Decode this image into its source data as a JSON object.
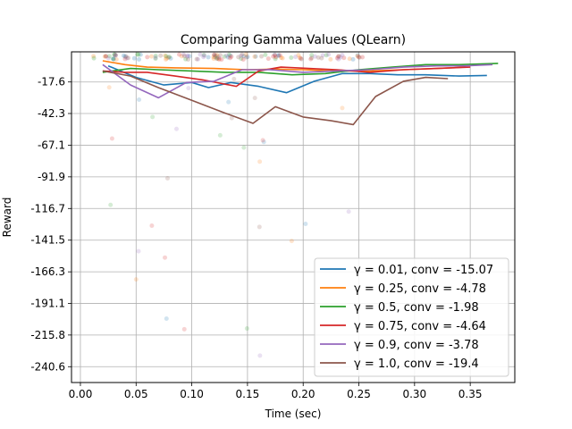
{
  "chart_data": {
    "type": "line",
    "title": "Comparing Gamma Values (QLearn)",
    "xlabel": "Time (sec)",
    "ylabel": "Reward",
    "xlim": [
      -0.008,
      0.39
    ],
    "ylim": [
      -253,
      6
    ],
    "xticks": [
      0.0,
      0.05,
      0.1,
      0.15,
      0.2,
      0.25,
      0.3,
      0.35
    ],
    "xtick_labels": [
      "0.00",
      "0.05",
      "0.10",
      "0.15",
      "0.20",
      "0.25",
      "0.30",
      "0.35"
    ],
    "yticks": [
      -17.6,
      -42.3,
      -67.1,
      -91.9,
      -116.7,
      -141.5,
      -166.3,
      -191.1,
      -215.8,
      -240.6
    ],
    "ytick_labels": [
      "-17.6",
      "-42.3",
      "-67.1",
      "-91.9",
      "-116.7",
      "-141.5",
      "-166.3",
      "-191.1",
      "-215.8",
      "-240.6"
    ],
    "grid": true,
    "legend_position": "bottom-right",
    "series": [
      {
        "name": "γ = 0.01, conv = -15.07",
        "color": "#1f77b4",
        "x": [
          0.025,
          0.05,
          0.075,
          0.1,
          0.115,
          0.135,
          0.16,
          0.185,
          0.21,
          0.235,
          0.26,
          0.285,
          0.31,
          0.34,
          0.365
        ],
        "y": [
          -5,
          -14,
          -20,
          -18,
          -22,
          -18,
          -21,
          -26,
          -17,
          -11,
          -11,
          -12,
          -12,
          -13,
          -12.5
        ]
      },
      {
        "name": "γ = 0.25, conv = -4.78",
        "color": "#ff7f0e",
        "x": [
          0.02,
          0.04,
          0.06,
          0.085,
          0.12,
          0.15,
          0.175,
          0.2,
          0.23,
          0.26,
          0.29,
          0.32,
          0.345
        ],
        "y": [
          -1,
          -4,
          -6,
          -6.5,
          -7,
          -8,
          -7.5,
          -8,
          -9,
          -9,
          -8,
          -7,
          -6
        ]
      },
      {
        "name": "γ = 0.5, conv = -1.98",
        "color": "#2ca02c",
        "x": [
          0.02,
          0.045,
          0.07,
          0.1,
          0.13,
          0.16,
          0.19,
          0.22,
          0.25,
          0.28,
          0.31,
          0.34,
          0.375
        ],
        "y": [
          -10,
          -7,
          -8,
          -9,
          -10,
          -10,
          -12,
          -11,
          -8,
          -6,
          -4,
          -4,
          -3
        ]
      },
      {
        "name": "γ = 0.75, conv = -4.64",
        "color": "#d62728",
        "x": [
          0.02,
          0.04,
          0.06,
          0.085,
          0.11,
          0.14,
          0.16,
          0.18,
          0.205,
          0.23,
          0.26,
          0.29,
          0.32,
          0.35
        ],
        "y": [
          -9,
          -10,
          -10,
          -13,
          -16,
          -21,
          -9,
          -6,
          -7,
          -8,
          -10,
          -8,
          -7,
          -6
        ]
      },
      {
        "name": "γ = 0.9, conv = -3.78",
        "color": "#9467bd",
        "x": [
          0.02,
          0.045,
          0.07,
          0.095,
          0.12,
          0.145,
          0.17,
          0.2,
          0.23,
          0.26,
          0.29,
          0.32,
          0.345,
          0.37
        ],
        "y": [
          -4,
          -20,
          -30,
          -18,
          -17,
          -8,
          -8,
          -10,
          -9,
          -8,
          -6,
          -5,
          -5,
          -4
        ]
      },
      {
        "name": "γ = 1.0, conv = -19.4",
        "color": "#8c564b",
        "x": [
          0.02,
          0.045,
          0.07,
          0.1,
          0.13,
          0.155,
          0.175,
          0.2,
          0.225,
          0.245,
          0.265,
          0.29,
          0.31,
          0.33
        ],
        "y": [
          -9,
          -13,
          -22,
          -32,
          -42,
          -50,
          -37,
          -45,
          -48,
          -51,
          -29,
          -17,
          -14,
          -15
        ]
      }
    ]
  },
  "legend_entries": [
    {
      "label": "γ = 0.01, conv = -15.07",
      "color": "#1f77b4"
    },
    {
      "label": "γ = 0.25, conv = -4.78",
      "color": "#ff7f0e"
    },
    {
      "label": "γ = 0.5, conv = -1.98",
      "color": "#2ca02c"
    },
    {
      "label": "γ = 0.75, conv = -4.64",
      "color": "#d62728"
    },
    {
      "label": "γ = 0.9, conv = -3.78",
      "color": "#9467bd"
    },
    {
      "label": "γ = 1.0, conv = -19.4",
      "color": "#8c564b"
    }
  ]
}
